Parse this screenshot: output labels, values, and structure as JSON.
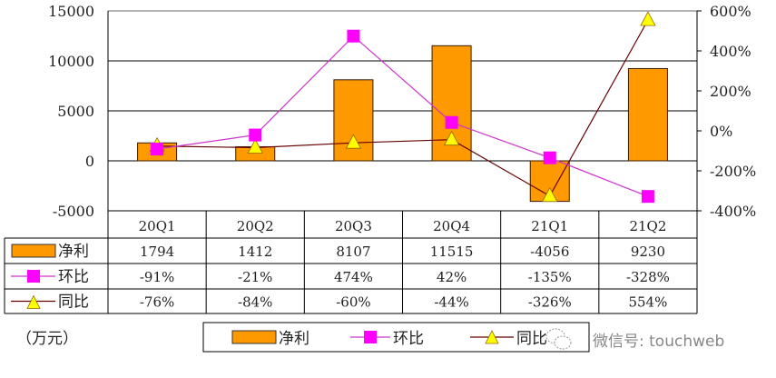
{
  "chart_data": {
    "type": "bar",
    "title": "",
    "categories": [
      "20Q1",
      "20Q2",
      "20Q3",
      "20Q4",
      "21Q1",
      "21Q2"
    ],
    "series": [
      {
        "name": "净利",
        "type": "bar",
        "axis": "left",
        "color": "#FF9900",
        "values": [
          1794,
          1412,
          8107,
          11515,
          -4056,
          9230
        ],
        "labels": [
          "1794",
          "1412",
          "8107",
          "11515",
          "-4056",
          "9230"
        ]
      },
      {
        "name": "环比",
        "type": "line",
        "axis": "right",
        "color": "#FF00FF",
        "marker": "square",
        "values": [
          -91,
          -21,
          474,
          42,
          -135,
          -328
        ],
        "labels": [
          "-91%",
          "-21%",
          "474%",
          "42%",
          "-135%",
          "-328%"
        ]
      },
      {
        "name": "同比",
        "type": "line",
        "axis": "right",
        "color": "#660000",
        "marker": "triangle",
        "marker_color": "#FFFF00",
        "values": [
          -76,
          -84,
          -60,
          -44,
          -326,
          554
        ],
        "labels": [
          "-76%",
          "-84%",
          "-60%",
          "-44%",
          "-326%",
          "554%"
        ]
      }
    ],
    "left_axis": {
      "ylim": [
        -5000,
        15000
      ],
      "ticks": [
        "15000",
        "10000",
        "5000",
        "0",
        "-5000"
      ],
      "tick_values": [
        15000,
        10000,
        5000,
        0,
        -5000
      ]
    },
    "right_axis": {
      "ylim": [
        -400,
        600
      ],
      "ticks": [
        "600%",
        "400%",
        "200%",
        "0%",
        "-200%",
        "-400%"
      ],
      "tick_values": [
        600,
        400,
        200,
        0,
        -200,
        -400
      ]
    },
    "unit_label": "（万元）",
    "grid": true,
    "legend_position": "bottom",
    "data_table": true
  },
  "legend": {
    "items": [
      {
        "label": "净利"
      },
      {
        "label": "环比"
      },
      {
        "label": "同比"
      }
    ]
  },
  "watermark": "微信号: touchweb",
  "colors": {
    "bar": "#FF9900",
    "bar_border": "#3a1a00",
    "mom_line": "#CC33CC",
    "mom_marker": "#FF00FF",
    "yoy_line": "#660000",
    "yoy_marker": "#FFFF00",
    "grid": "#000000"
  }
}
